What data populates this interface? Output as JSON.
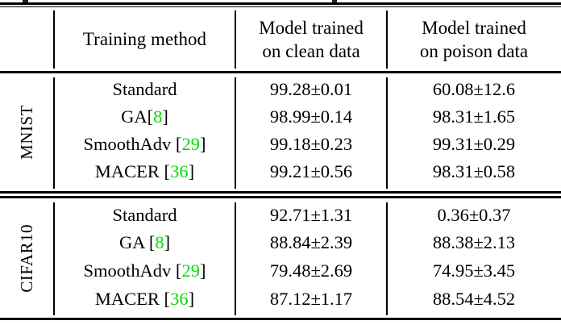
{
  "colors": {
    "citation_green": "#00DC00",
    "text": "#000000",
    "background": "#ffffff"
  },
  "table": {
    "header": {
      "method": "Training method",
      "clean": [
        "Model trained",
        "on clean data"
      ],
      "poison": [
        "Model trained",
        "on poison data"
      ]
    },
    "groups": [
      {
        "label": "MNIST",
        "rows": [
          {
            "pre": "Standard",
            "clean": "99.28±0.01",
            "poison": "60.08±12.6"
          },
          {
            "pre": "GA[",
            "cite": "8",
            "post": "]",
            "clean": "98.99±0.14",
            "poison": "98.31±1.65"
          },
          {
            "pre": "SmoothAdv [",
            "cite": "29",
            "post": "]",
            "clean": "99.18±0.23",
            "poison": "99.31±0.29"
          },
          {
            "pre": "MACER [",
            "cite": "36",
            "post": "]",
            "clean": "99.21±0.56",
            "poison": "98.31±0.58"
          }
        ]
      },
      {
        "label": "CIFAR10",
        "rows": [
          {
            "pre": "Standard",
            "clean": "92.71±1.31",
            "poison": "0.36±0.37"
          },
          {
            "pre": "GA [",
            "cite": "8",
            "post": "]",
            "clean": "88.84±2.39",
            "poison": "88.38±2.13"
          },
          {
            "pre": "SmoothAdv [",
            "cite": "29",
            "post": "]",
            "clean": "79.48±2.69",
            "poison": "74.95±3.45"
          },
          {
            "pre": "MACER [",
            "cite": "36",
            "post": "]",
            "clean": "87.12±1.17",
            "poison": "88.54±4.52"
          }
        ]
      }
    ]
  }
}
